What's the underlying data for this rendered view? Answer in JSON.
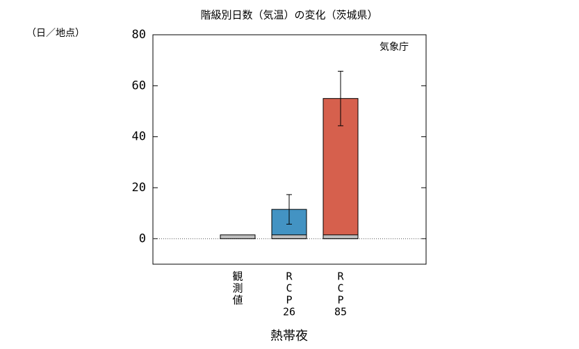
{
  "chart_data": {
    "type": "bar",
    "title": "階級別日数（気温）の変化（茨城県）",
    "y_unit": "（日／地点）",
    "source": "気象庁",
    "xlabel": "熱帯夜",
    "categories": [
      [
        "観",
        "測",
        "値"
      ],
      [
        "R",
        "C",
        "P",
        "26"
      ],
      [
        "R",
        "C",
        "P",
        "85"
      ]
    ],
    "values": [
      1.5,
      11.5,
      55
    ],
    "errors": [
      null,
      5.8,
      10.7
    ],
    "colors": [
      "#c0c0c0",
      "#4393c3",
      "#d6604d"
    ],
    "observed_overlay": [
      null,
      1.5,
      1.5
    ],
    "overlay_color": "#c0c0c0",
    "ylim": [
      -10,
      80
    ],
    "yticks": [
      0,
      20,
      40,
      60,
      80
    ],
    "zero_line": true
  }
}
